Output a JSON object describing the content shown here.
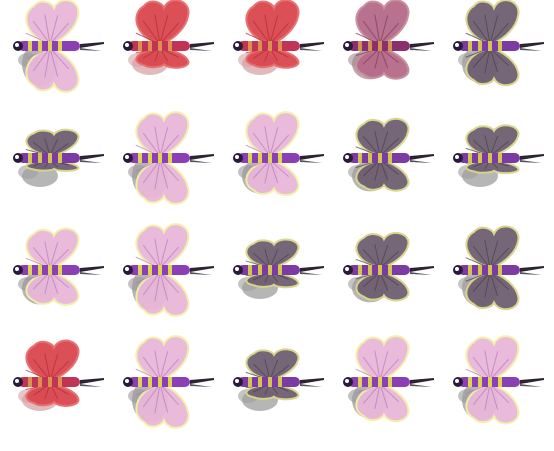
{
  "sprite_sheet": {
    "rows": 4,
    "columns": 5,
    "palettes": {
      "pink": {
        "wing": "#e8b7d8",
        "wing_vein": "#b77ac4",
        "wing_rim": "#f3f0a8",
        "body": "#8a3fb5",
        "band": "#e8e24c",
        "shadow": "#9a9a9a"
      },
      "red": {
        "wing": "#d9474e",
        "wing_vein": "#b22a36",
        "wing_rim": "#e96a6a",
        "body": "#c23456",
        "band": "#e09a4a",
        "shadow": "#d7a3a6"
      },
      "maroon": {
        "wing": "#b56a8a",
        "wing_vein": "#7e3b5c",
        "wing_rim": "#c98b9b",
        "body": "#8b2f6f",
        "band": "#d3a24b",
        "shadow": "#a48b92"
      },
      "dark": {
        "wing": "#6e5f70",
        "wing_vein": "#4a3e51",
        "wing_rim": "#d6d68a",
        "body": "#7c3aa3",
        "band": "#dcd54a",
        "shadow": "#9e9e9e"
      }
    },
    "frames": [
      {
        "palette": "pink",
        "top_wing": 1.0,
        "bottom_wing": 1.0
      },
      {
        "palette": "red",
        "top_wing": 1.0,
        "bottom_wing": 0.45
      },
      {
        "palette": "red",
        "top_wing": 1.0,
        "bottom_wing": 0.45
      },
      {
        "palette": "maroon",
        "top_wing": 1.0,
        "bottom_wing": 0.7
      },
      {
        "palette": "dark",
        "top_wing": 1.0,
        "bottom_wing": 0.85
      },
      {
        "palette": "dark",
        "top_wing": 0.6,
        "bottom_wing": 0.25
      },
      {
        "palette": "pink",
        "top_wing": 1.0,
        "bottom_wing": 1.0
      },
      {
        "palette": "pink",
        "top_wing": 1.0,
        "bottom_wing": 0.8
      },
      {
        "palette": "dark",
        "top_wing": 0.85,
        "bottom_wing": 0.7
      },
      {
        "palette": "dark",
        "top_wing": 0.7,
        "bottom_wing": 0.3
      },
      {
        "palette": "pink",
        "top_wing": 0.9,
        "bottom_wing": 0.75
      },
      {
        "palette": "pink",
        "top_wing": 1.0,
        "bottom_wing": 1.0
      },
      {
        "palette": "dark",
        "top_wing": 0.65,
        "bottom_wing": 0.35
      },
      {
        "palette": "dark",
        "top_wing": 0.8,
        "bottom_wing": 0.65
      },
      {
        "palette": "dark",
        "top_wing": 0.95,
        "bottom_wing": 0.85
      },
      {
        "palette": "red",
        "top_wing": 0.9,
        "bottom_wing": 0.5
      },
      {
        "palette": "pink",
        "top_wing": 1.0,
        "bottom_wing": 1.0
      },
      {
        "palette": "dark",
        "top_wing": 0.7,
        "bottom_wing": 0.35
      },
      {
        "palette": "pink",
        "top_wing": 1.0,
        "bottom_wing": 0.85
      },
      {
        "palette": "pink",
        "top_wing": 1.0,
        "bottom_wing": 0.9
      }
    ]
  }
}
